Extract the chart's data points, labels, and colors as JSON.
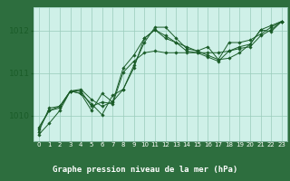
{
  "background_color": "#cceedd",
  "plot_bg_color": "#cff0e8",
  "bottom_bar_color": "#2d6e3e",
  "line_color": "#1a5c28",
  "grid_color": "#99ccbb",
  "xlabel": "Graphe pression niveau de la mer (hPa)",
  "xlim": [
    -0.5,
    23.5
  ],
  "ylim": [
    1009.4,
    1012.55
  ],
  "yticks": [
    1010,
    1011,
    1012
  ],
  "xticks": [
    0,
    1,
    2,
    3,
    4,
    5,
    6,
    7,
    8,
    9,
    10,
    11,
    12,
    13,
    14,
    15,
    16,
    17,
    18,
    19,
    20,
    21,
    22,
    23
  ],
  "series": [
    [
      1009.55,
      1009.82,
      1010.12,
      1010.58,
      1010.62,
      1010.38,
      1010.22,
      1010.33,
      1010.62,
      1011.18,
      1011.72,
      1012.08,
      1012.08,
      1011.82,
      1011.58,
      1011.52,
      1011.42,
      1011.32,
      1011.35,
      1011.48,
      1011.68,
      1012.02,
      1012.12,
      1012.22
    ],
    [
      1009.62,
      1010.18,
      1010.22,
      1010.58,
      1010.52,
      1010.12,
      1010.52,
      1010.32,
      1011.12,
      1011.42,
      1011.82,
      1012.02,
      1011.82,
      1011.72,
      1011.62,
      1011.52,
      1011.62,
      1011.32,
      1011.72,
      1011.72,
      1011.78,
      1011.92,
      1012.08,
      1012.22
    ],
    [
      1009.72,
      1010.12,
      1010.22,
      1010.58,
      1010.52,
      1010.28,
      1010.02,
      1010.48,
      1010.62,
      1011.12,
      1011.82,
      1012.02,
      1011.88,
      1011.72,
      1011.52,
      1011.48,
      1011.38,
      1011.28,
      1011.52,
      1011.62,
      1011.68,
      1012.02,
      1011.98,
      1012.22
    ],
    [
      1009.68,
      1010.12,
      1010.18,
      1010.58,
      1010.58,
      1010.22,
      1010.32,
      1010.28,
      1011.02,
      1011.28,
      1011.48,
      1011.52,
      1011.48,
      1011.48,
      1011.48,
      1011.48,
      1011.48,
      1011.48,
      1011.52,
      1011.58,
      1011.62,
      1011.88,
      1012.02,
      1012.22
    ]
  ]
}
